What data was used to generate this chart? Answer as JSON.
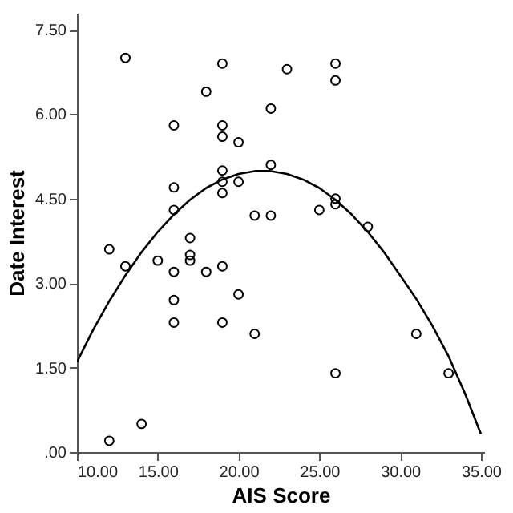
{
  "chart_data": {
    "type": "scatter",
    "xlabel": "AIS Score",
    "ylabel": "Date Interest",
    "xlim": [
      10,
      35.2
    ],
    "ylim": [
      0,
      7.8
    ],
    "xticks": [
      {
        "value": 10,
        "label": "10.00"
      },
      {
        "value": 15,
        "label": "15.00"
      },
      {
        "value": 20,
        "label": "20.00"
      },
      {
        "value": 25,
        "label": "25.00"
      },
      {
        "value": 30,
        "label": "30.00"
      },
      {
        "value": 35,
        "label": "35.00"
      }
    ],
    "yticks": [
      {
        "value": 0,
        "label": ".00"
      },
      {
        "value": 1.5,
        "label": "1.50"
      },
      {
        "value": 3,
        "label": "3.00"
      },
      {
        "value": 4.5,
        "label": "4.50"
      },
      {
        "value": 6,
        "label": "6.00"
      },
      {
        "value": 7.5,
        "label": "7.50"
      }
    ],
    "grid": false,
    "series": [
      {
        "type": "scatter",
        "color": "#000000",
        "marker": "circle",
        "x": [
          13,
          19,
          23,
          26,
          26,
          18,
          22,
          16,
          19,
          19,
          20,
          22,
          19,
          16,
          19,
          20,
          19,
          16,
          21,
          22,
          25,
          26,
          26,
          28,
          17,
          12,
          13,
          15,
          17,
          17,
          16,
          18,
          19,
          16,
          20,
          16,
          19,
          21,
          31,
          26,
          33,
          14,
          12
        ],
        "values": [
          7.0,
          6.9,
          6.8,
          6.9,
          6.6,
          6.4,
          6.1,
          5.8,
          5.8,
          5.6,
          5.5,
          5.1,
          5.0,
          4.7,
          4.8,
          4.8,
          4.6,
          4.3,
          4.2,
          4.2,
          4.3,
          4.5,
          4.4,
          4.0,
          3.8,
          3.6,
          3.3,
          3.4,
          3.5,
          3.4,
          3.2,
          3.2,
          3.3,
          2.7,
          2.8,
          2.3,
          2.3,
          2.1,
          2.1,
          1.4,
          1.4,
          0.5,
          0.2
        ]
      },
      {
        "type": "line",
        "color": "#000000",
        "marker": "none",
        "line_style": "solid",
        "x": [
          10,
          11,
          12,
          13,
          14,
          15,
          16,
          17,
          18,
          19,
          20,
          21,
          22,
          23,
          24,
          25,
          26,
          27,
          28,
          29,
          30,
          31,
          32,
          33,
          34,
          35
        ],
        "values": [
          1.6,
          2.17,
          2.68,
          3.14,
          3.55,
          3.91,
          4.22,
          4.48,
          4.69,
          4.84,
          4.94,
          4.99,
          4.99,
          4.94,
          4.84,
          4.69,
          4.48,
          4.22,
          3.91,
          3.55,
          3.14,
          2.72,
          2.24,
          1.7,
          1.05,
          0.32
        ]
      }
    ]
  }
}
